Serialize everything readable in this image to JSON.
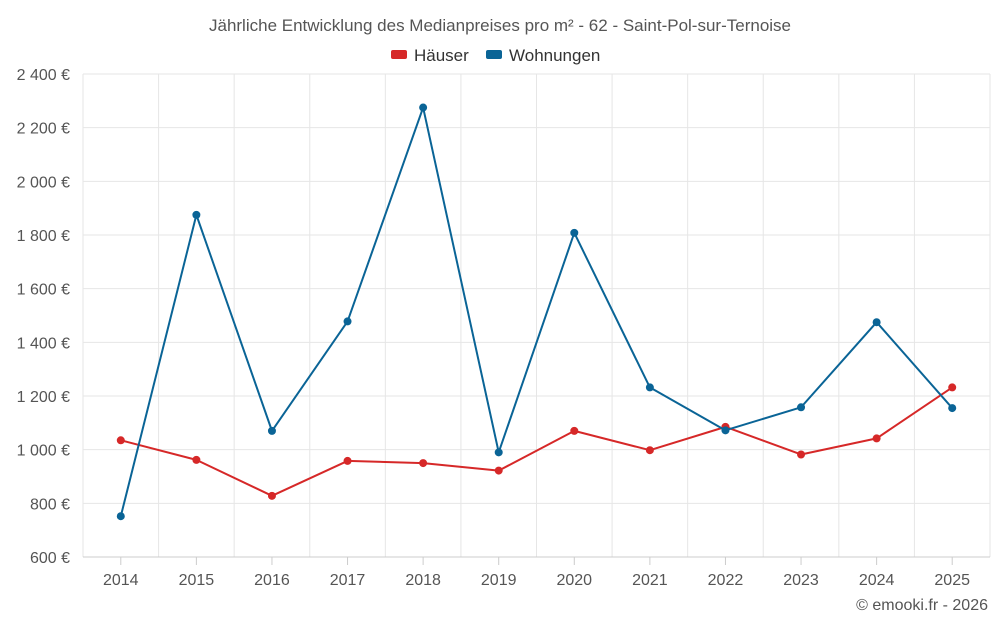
{
  "chart_data": {
    "type": "line",
    "title": "Jährliche Entwicklung des Medianpreises pro m² - 62 - Saint-Pol-sur-Ternoise",
    "categories": [
      "2014",
      "2015",
      "2016",
      "2017",
      "2018",
      "2019",
      "2020",
      "2021",
      "2022",
      "2023",
      "2024",
      "2025"
    ],
    "series": [
      {
        "name": "Häuser",
        "color": "#d62828",
        "values": [
          1035,
          962,
          828,
          958,
          950,
          922,
          1070,
          998,
          1085,
          982,
          1042,
          1232
        ]
      },
      {
        "name": "Wohnungen",
        "color": "#0a6496",
        "values": [
          752,
          1875,
          1070,
          1478,
          2275,
          990,
          1808,
          1232,
          1072,
          1158,
          1475,
          1155
        ]
      }
    ],
    "ylim": [
      600,
      2400
    ],
    "yticks": [
      600,
      800,
      1000,
      1200,
      1400,
      1600,
      1800,
      2000,
      2200,
      2400
    ],
    "ytick_labels": [
      "600 €",
      "800 €",
      "1 000 €",
      "1 200 €",
      "1 400 €",
      "1 600 €",
      "1 800 €",
      "2 000 €",
      "2 200 €",
      "2 400 €"
    ],
    "xlabel": "",
    "ylabel": "",
    "legend_position": "top-center",
    "grid": true
  },
  "credit": "© emooki.fr - 2026"
}
